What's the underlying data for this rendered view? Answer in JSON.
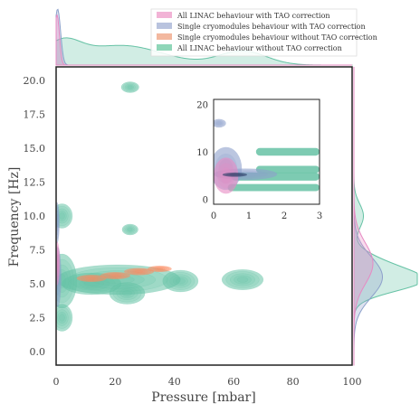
{
  "chart_data": {
    "type": "kde-joint",
    "title": "",
    "xlabel": "Pressure [mbar]",
    "ylabel": "Frequency [Hz]",
    "xlim": [
      0,
      100
    ],
    "ylim": [
      -1,
      21
    ],
    "x_ticks": [
      "0",
      "20",
      "40",
      "60",
      "80",
      "100"
    ],
    "y_ticks": [
      "0.0",
      "2.5",
      "5.0",
      "7.5",
      "10.0",
      "12.5",
      "15.0",
      "17.5",
      "20.0"
    ],
    "legend": {
      "placement": "top-right",
      "entries": [
        {
          "label": "All LINAC behaviour with TAO correction",
          "color": "#f2b3d6"
        },
        {
          "label": "Single cryomodules behaviour with TAO correction",
          "color": "#b9c3de"
        },
        {
          "label": "Single cryomodules behaviour without TAO correction",
          "color": "#f3b89f"
        },
        {
          "label": "All LINAC behaviour without TAO correction",
          "color": "#8fd6b8"
        }
      ]
    },
    "series": [
      {
        "legend_index": 3,
        "color": "#66c2a5",
        "blobs": [
          {
            "x": 21,
            "y": 5.3,
            "sx": 21,
            "sy": 1.1
          },
          {
            "x": 12,
            "y": 5.0,
            "sx": 10,
            "sy": 0.8
          },
          {
            "x": 2,
            "y": 5.2,
            "sx": 5,
            "sy": 2.0
          },
          {
            "x": 24,
            "y": 4.3,
            "sx": 6,
            "sy": 0.8
          },
          {
            "x": 42,
            "y": 5.2,
            "sx": 6,
            "sy": 0.8
          },
          {
            "x": 63,
            "y": 5.3,
            "sx": 7,
            "sy": 0.75
          },
          {
            "x": 2,
            "y": 10.0,
            "sx": 3.5,
            "sy": 0.9
          },
          {
            "x": 25,
            "y": 9.0,
            "sx": 2.7,
            "sy": 0.4
          },
          {
            "x": 25,
            "y": 19.5,
            "sx": 3.0,
            "sy": 0.4
          },
          {
            "x": 2,
            "y": 2.5,
            "sx": 3.5,
            "sy": 1.0
          }
        ]
      },
      {
        "legend_index": 2,
        "color": "#fc8d62",
        "blobs": [
          {
            "x": 12,
            "y": 5.4,
            "sx": 5,
            "sy": 0.25
          },
          {
            "x": 20,
            "y": 5.6,
            "sx": 5,
            "sy": 0.25
          },
          {
            "x": 28,
            "y": 5.9,
            "sx": 5,
            "sy": 0.25
          },
          {
            "x": 35,
            "y": 6.1,
            "sx": 4,
            "sy": 0.22
          }
        ]
      },
      {
        "legend_index": 1,
        "color": "#8da0cb",
        "blobs": [
          {
            "x": 0.5,
            "y": 5.5,
            "sx": 1.2,
            "sy": 2.2
          },
          {
            "x": 0.3,
            "y": 9.5,
            "sx": 0.8,
            "sy": 1.5
          }
        ]
      },
      {
        "legend_index": 0,
        "color": "#e78ac3",
        "blobs": [
          {
            "x": 0.3,
            "y": 6.5,
            "sx": 0.9,
            "sy": 1.6
          }
        ]
      }
    ],
    "inset": {
      "xlim": [
        0,
        3
      ],
      "ylim": [
        -1,
        21
      ],
      "x_ticks": [
        "0",
        "1",
        "2",
        "3"
      ],
      "y_ticks": [
        "0",
        "10",
        "20"
      ],
      "bands": [
        {
          "y": 10.0,
          "x0": 1.2,
          "x1": 3.0,
          "h": 1.6,
          "color": "#66c2a5"
        },
        {
          "y": 6.3,
          "x0": 1.2,
          "x1": 3.0,
          "h": 1.5,
          "color": "#66c2a5"
        },
        {
          "y": 4.8,
          "x0": 0.5,
          "x1": 3.0,
          "h": 1.7,
          "color": "#66c2a5"
        },
        {
          "y": 2.5,
          "x0": 0.4,
          "x1": 3.0,
          "h": 1.5,
          "color": "#66c2a5"
        }
      ],
      "blobs": [
        {
          "x": 0.35,
          "y": 6.5,
          "sx": 0.45,
          "sy": 4.5,
          "color": "#8da0cb"
        },
        {
          "x": 0.9,
          "y": 5.3,
          "sx": 0.9,
          "sy": 1.2,
          "color": "#8da0cb"
        },
        {
          "x": 0.15,
          "y": 16.0,
          "sx": 0.2,
          "sy": 0.9,
          "color": "#8da0cb"
        },
        {
          "x": 0.35,
          "y": 5.0,
          "sx": 0.35,
          "sy": 3.8,
          "color": "#e78ac3"
        },
        {
          "x": 0.6,
          "y": 5.2,
          "sx": 0.35,
          "sy": 0.45,
          "color": "#2c3e66"
        }
      ]
    },
    "marginal_x": [
      {
        "color": "#66c2a5",
        "peaks": [
          {
            "x": 2,
            "w": 6,
            "h": 0.35
          },
          {
            "x": 22,
            "w": 14,
            "h": 0.35
          },
          {
            "x": 63,
            "w": 8,
            "h": 0.25
          }
        ]
      },
      {
        "color": "#8da0cb",
        "peaks": [
          {
            "x": 0.5,
            "w": 1.0,
            "h": 1.0
          }
        ]
      },
      {
        "color": "#e78ac3",
        "peaks": [
          {
            "x": 0.3,
            "w": 0.8,
            "h": 0.9
          }
        ]
      }
    ],
    "marginal_y": [
      {
        "color": "#66c2a5",
        "peaks": [
          {
            "y": 5.2,
            "w": 0.8,
            "h": 1.0
          },
          {
            "y": 10.0,
            "w": 0.9,
            "h": 0.15
          },
          {
            "y": 6.5,
            "w": 0.8,
            "h": 0.35
          }
        ]
      },
      {
        "color": "#8da0cb",
        "peaks": [
          {
            "y": 5.5,
            "w": 1.5,
            "h": 0.45
          }
        ]
      },
      {
        "color": "#e78ac3",
        "peaks": [
          {
            "y": 6.5,
            "w": 1.5,
            "h": 0.3
          }
        ]
      }
    ]
  }
}
